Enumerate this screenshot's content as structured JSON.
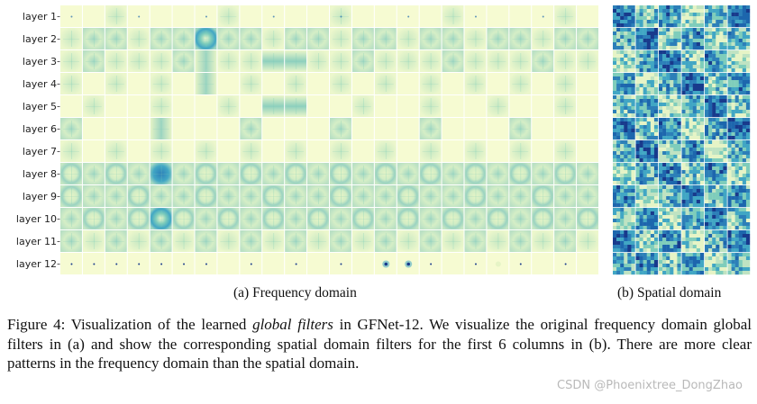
{
  "figure": {
    "row_labels": [
      "layer 1",
      "layer 2",
      "layer 3",
      "layer 4",
      "layer 5",
      "layer 6",
      "layer 7",
      "layer 8",
      "layer 9",
      "layer 10",
      "layer 11",
      "layer 12"
    ],
    "freq_columns": 24,
    "spatial_columns": 6,
    "caption_a": "(a) Frequency domain",
    "caption_b": "(b) Spatial domain",
    "colors": {
      "pale": "#f6fbd2",
      "light": "#e6f4c6",
      "mid": "#bfe3c2",
      "teal": "#7fcdbb",
      "blue": "#41a6c4",
      "deep": "#1d66ad",
      "navy": "#183a8c",
      "cell_border": "#ffffff"
    }
  },
  "caption": {
    "label": "Figure 4:",
    "text_1": "Visualization of the learned",
    "emphasis": "global filters",
    "text_2": "in GFNet-12. We visualize the original frequency domain global filters in (a) and show the corresponding spatial domain filters for the first 6 columns in (b). There are more clear patterns in the frequency domain than the spatial domain."
  },
  "watermark": "CSDN @Phoenixtree_DongZhao"
}
